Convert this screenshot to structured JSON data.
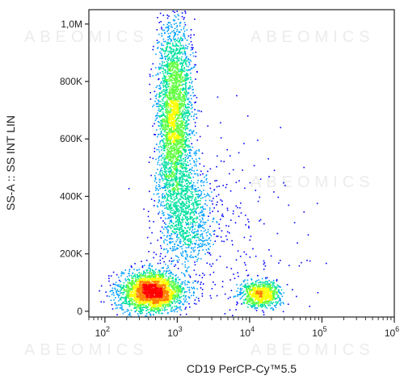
{
  "chart_data": {
    "type": "scatter",
    "subtype": "flow-cytometry density dot plot",
    "xlabel": "CD19 PerCP-Cy™5.5",
    "ylabel": "SS-A :: SS INT LIN",
    "x_scale": "log",
    "xlim": [
      60,
      1000000
    ],
    "ylim": [
      -20000,
      1050000
    ],
    "x_ticks": [
      {
        "value": 100,
        "base": "10",
        "exp": "2"
      },
      {
        "value": 1000,
        "base": "10",
        "exp": "3"
      },
      {
        "value": 10000,
        "base": "10",
        "exp": "4"
      },
      {
        "value": 100000,
        "base": "10",
        "exp": "5"
      },
      {
        "value": 1000000,
        "base": "10",
        "exp": "6"
      }
    ],
    "y_ticks": [
      {
        "value": 0,
        "label": "0"
      },
      {
        "value": 200000,
        "label": "200K"
      },
      {
        "value": 400000,
        "label": "400K"
      },
      {
        "value": 600000,
        "label": "600K"
      },
      {
        "value": 800000,
        "label": "800K"
      },
      {
        "value": 1000000,
        "label": "1,0M"
      }
    ],
    "colormap": [
      "#0000ff",
      "#00a0ff",
      "#00e0a0",
      "#60ff40",
      "#ffff00",
      "#ff8000",
      "#ff0000"
    ],
    "populations": [
      {
        "center_x": 440,
        "center_y": 70000,
        "spread_log_x": 0.22,
        "spread_y": 35000,
        "events": 2600,
        "peak": "#ff0000"
      },
      {
        "center_x": 900,
        "center_y": 680000,
        "spread_log_x": 0.12,
        "spread_y": 170000,
        "events": 3000,
        "peak": "#ffff00"
      },
      {
        "center_x": 1300,
        "center_y": 330000,
        "spread_log_x": 0.2,
        "spread_y": 90000,
        "events": 900,
        "peak": "#00e0a0"
      },
      {
        "center_x": 14000,
        "center_y": 62000,
        "spread_log_x": 0.14,
        "spread_y": 22000,
        "events": 800,
        "peak": "#60ff40"
      },
      {
        "center_x": 5000,
        "center_y": 250000,
        "spread_log_x": 0.5,
        "spread_y": 200000,
        "events": 250,
        "peak": "#0000ff"
      }
    ],
    "grid": false,
    "legend": "none"
  },
  "watermark": {
    "text": "ABEOMICS"
  }
}
